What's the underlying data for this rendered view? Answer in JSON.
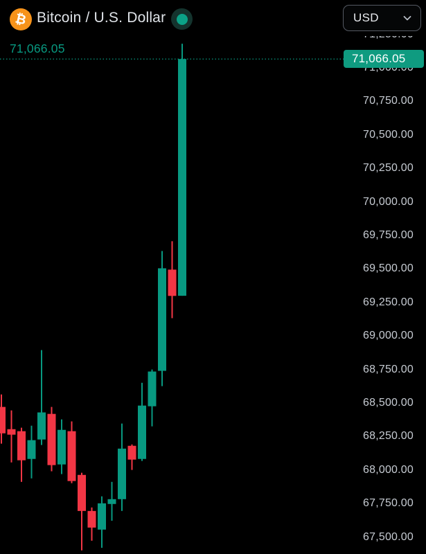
{
  "header": {
    "symbol_name": "Bitcoin / U.S. Dollar",
    "logo_glyph": "₿",
    "market_status": "open",
    "currency_selector": {
      "value": "USD"
    }
  },
  "price_scale": {
    "current_price_label": "71,066.05",
    "last_price_badge": "71,066.05",
    "ticks": [
      {
        "label": "71,250.00",
        "value": 71250
      },
      {
        "label": "71,000.00",
        "value": 71000
      },
      {
        "label": "70,750.00",
        "value": 70750
      },
      {
        "label": "70,500.00",
        "value": 70500
      },
      {
        "label": "70,250.00",
        "value": 70250
      },
      {
        "label": "70,000.00",
        "value": 70000
      },
      {
        "label": "69,750.00",
        "value": 69750
      },
      {
        "label": "69,500.00",
        "value": 69500
      },
      {
        "label": "69,250.00",
        "value": 69250
      },
      {
        "label": "69,000.00",
        "value": 69000
      },
      {
        "label": "68,750.00",
        "value": 68750
      },
      {
        "label": "68,500.00",
        "value": 68500
      },
      {
        "label": "68,250.00",
        "value": 68250
      },
      {
        "label": "68,000.00",
        "value": 68000
      },
      {
        "label": "67,750.00",
        "value": 67750
      },
      {
        "label": "67,500.00",
        "value": 67500
      }
    ]
  },
  "chart_data": {
    "type": "candlestick",
    "title": "Bitcoin / U.S. Dollar",
    "quote_currency": "USD",
    "last_price": 71066.05,
    "price_line": {
      "value": 71066.05,
      "label": "71,066.05",
      "style": "dotted"
    },
    "y_axis": {
      "visible_min": 67400,
      "visible_max": 71300,
      "tick_interval": 250,
      "grid": false
    },
    "up_color": "#089981",
    "down_color": "#f23645",
    "candles": [
      {
        "open": 68471,
        "high": 68564,
        "low": 68197,
        "close": 68274
      },
      {
        "open": 68305,
        "high": 68445,
        "low": 68057,
        "close": 68264
      },
      {
        "open": 68290,
        "high": 68316,
        "low": 67912,
        "close": 68073
      },
      {
        "open": 68083,
        "high": 68331,
        "low": 67938,
        "close": 68223
      },
      {
        "open": 68228,
        "high": 68895,
        "low": 68187,
        "close": 68430
      },
      {
        "open": 68419,
        "high": 68471,
        "low": 67991,
        "close": 68037
      },
      {
        "open": 68042,
        "high": 68378,
        "low": 67970,
        "close": 68300
      },
      {
        "open": 68290,
        "high": 68363,
        "low": 67902,
        "close": 67918
      },
      {
        "open": 67964,
        "high": 67980,
        "low": 67401,
        "close": 67695
      },
      {
        "open": 67695,
        "high": 67721,
        "low": 67473,
        "close": 67571
      },
      {
        "open": 67556,
        "high": 67804,
        "low": 67420,
        "close": 67752
      },
      {
        "open": 67747,
        "high": 67912,
        "low": 67622,
        "close": 67783
      },
      {
        "open": 67783,
        "high": 68347,
        "low": 67695,
        "close": 68160
      },
      {
        "open": 68181,
        "high": 68191,
        "low": 68001,
        "close": 68078
      },
      {
        "open": 68083,
        "high": 68651,
        "low": 68068,
        "close": 68481
      },
      {
        "open": 68476,
        "high": 68750,
        "low": 68326,
        "close": 68735
      },
      {
        "open": 68740,
        "high": 69634,
        "low": 68626,
        "close": 69505
      },
      {
        "open": 69495,
        "high": 69707,
        "low": 69133,
        "close": 69299
      },
      {
        "open": 69300,
        "high": 71180,
        "low": 69300,
        "close": 71066.05
      }
    ]
  },
  "colors": {
    "background": "#000000",
    "accent_teal": "#089981",
    "up": "#089981",
    "down": "#f23645",
    "bitcoin_orange": "#f7931a",
    "badge_background": "#0f9b80",
    "badge_text": "#ffffff",
    "axis_text": "#c7ccd3",
    "title_text": "#dfe3e8"
  }
}
